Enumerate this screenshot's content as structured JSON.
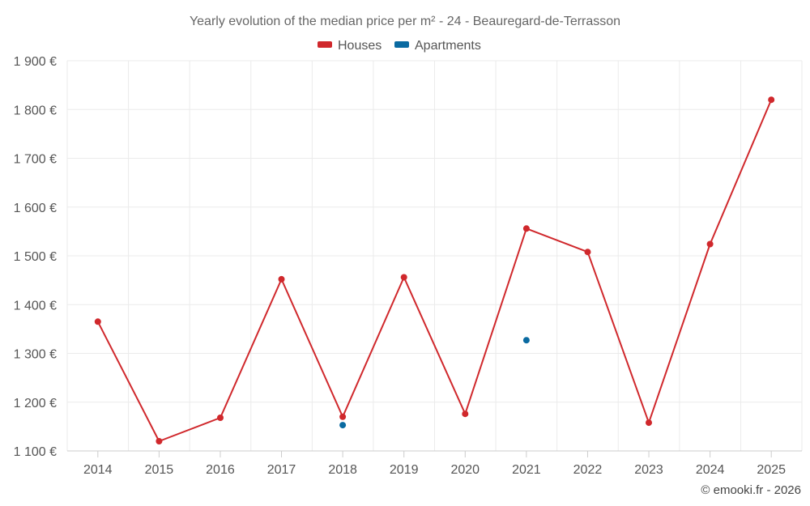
{
  "chart_data": {
    "type": "line",
    "title": "Yearly evolution of the median price per m² - 24 - Beauregard-de-Terrasson",
    "categories": [
      "2014",
      "2015",
      "2016",
      "2017",
      "2018",
      "2019",
      "2020",
      "2021",
      "2022",
      "2023",
      "2024",
      "2025"
    ],
    "ylim": [
      1100,
      1900
    ],
    "yticks": [
      1100,
      1200,
      1300,
      1400,
      1500,
      1600,
      1700,
      1800,
      1900
    ],
    "ytick_labels": [
      "1 100 €",
      "1 200 €",
      "1 300 €",
      "1 400 €",
      "1 500 €",
      "1 600 €",
      "1 700 €",
      "1 800 €",
      "1 900 €"
    ],
    "series": [
      {
        "name": "Houses",
        "color": "#d0282c",
        "values": [
          1365,
          1120,
          1168,
          1452,
          1170,
          1456,
          1176,
          1556,
          1508,
          1158,
          1524,
          1820
        ]
      },
      {
        "name": "Apartments",
        "color": "#0a6aa1",
        "values": [
          null,
          null,
          null,
          null,
          1153,
          null,
          null,
          1327,
          null,
          null,
          null,
          null
        ]
      }
    ],
    "grid": true,
    "legend": "top-center",
    "credit": "© emooki.fr - 2026"
  }
}
